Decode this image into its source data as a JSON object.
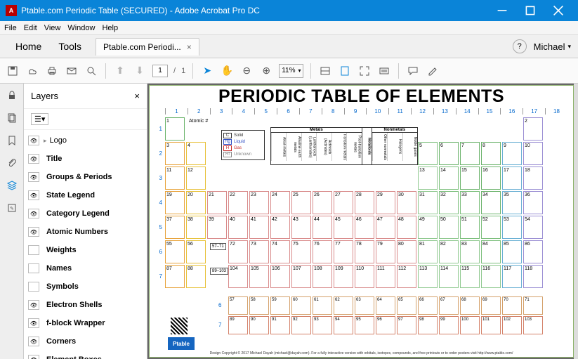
{
  "window": {
    "title": "Ptable.com Periodic Table (SECURED) - Adobe Acrobat Pro DC"
  },
  "menu": {
    "items": [
      "File",
      "Edit",
      "View",
      "Window",
      "Help"
    ]
  },
  "tabs": {
    "home": "Home",
    "tools": "Tools",
    "doc": "Ptable.com Periodi...",
    "user": "Michael"
  },
  "toolbar": {
    "page_cur": "1",
    "page_sep": "/",
    "page_tot": "1",
    "zoom": "11%"
  },
  "layers": {
    "title": "Layers",
    "items": [
      {
        "vis": true,
        "label": "Logo",
        "expand": "▸"
      },
      {
        "vis": true,
        "label": "Title"
      },
      {
        "vis": true,
        "label": "Groups & Periods"
      },
      {
        "vis": true,
        "label": "State Legend"
      },
      {
        "vis": true,
        "label": "Category Legend"
      },
      {
        "vis": true,
        "label": "Atomic Numbers"
      },
      {
        "vis": false,
        "label": "Weights"
      },
      {
        "vis": false,
        "label": "Names"
      },
      {
        "vis": false,
        "label": "Symbols"
      },
      {
        "vis": true,
        "label": "Electron Shells"
      },
      {
        "vis": true,
        "label": "f-block Wrapper"
      },
      {
        "vis": true,
        "label": "Corners"
      },
      {
        "vis": true,
        "label": "Element Boxes"
      }
    ]
  },
  "doc": {
    "title": "PERIODIC TABLE OF ELEMENTS",
    "cols": [
      "1",
      "2",
      "3",
      "4",
      "5",
      "6",
      "7",
      "8",
      "9",
      "10",
      "11",
      "12",
      "13",
      "14",
      "15",
      "16",
      "17",
      "18"
    ],
    "rows": [
      "1",
      "2",
      "3",
      "4",
      "5",
      "6",
      "7"
    ],
    "atomic_label": "Atomic #",
    "state_legend": [
      {
        "s": "C",
        "t": "Solid",
        "c": "#333"
      },
      {
        "s": "Hg",
        "t": "Liquid",
        "c": "#2b4bc4"
      },
      {
        "s": "H",
        "t": "Gas",
        "c": "#c62828"
      },
      {
        "s": "Rf",
        "t": "Unknown",
        "c": "#888"
      }
    ],
    "category_legend": {
      "metals": "Metals",
      "metalloids": "Metalloids",
      "nonmetals": "Nonmetals",
      "sub": [
        "Alkali metals",
        "Alkaline earth metals",
        "Lanthanoids (Lanthanides)",
        "Actinoids (Actinides)",
        "Transition metals",
        "Post-transition metals",
        "Other nonmetals",
        "Halogens",
        "Noble gases"
      ],
      "side": [
        "Pnictogens",
        "Chalcogens"
      ]
    },
    "colors": {
      "alkali": "#e8a33b",
      "alkaline": "#e8c23b",
      "transition": "#d98b8b",
      "post": "#8fc98f",
      "metalloid": "#7bbf7b",
      "nonmetal": "#6bb36b",
      "halogen": "#6ab0d4",
      "noble": "#9b8fd4",
      "lanth": "#d4a06a",
      "actin": "#d4826a"
    },
    "elements_main": [
      {
        "n": 1,
        "r": 0,
        "c": 0,
        "cat": "nonmetal"
      },
      {
        "n": 2,
        "r": 0,
        "c": 17,
        "cat": "noble"
      },
      {
        "n": 3,
        "r": 1,
        "c": 0,
        "cat": "alkali"
      },
      {
        "n": 4,
        "r": 1,
        "c": 1,
        "cat": "alkaline"
      },
      {
        "n": 5,
        "r": 1,
        "c": 12,
        "cat": "metalloid"
      },
      {
        "n": 6,
        "r": 1,
        "c": 13,
        "cat": "nonmetal"
      },
      {
        "n": 7,
        "r": 1,
        "c": 14,
        "cat": "nonmetal"
      },
      {
        "n": 8,
        "r": 1,
        "c": 15,
        "cat": "nonmetal"
      },
      {
        "n": 9,
        "r": 1,
        "c": 16,
        "cat": "halogen"
      },
      {
        "n": 10,
        "r": 1,
        "c": 17,
        "cat": "noble"
      },
      {
        "n": 11,
        "r": 2,
        "c": 0,
        "cat": "alkali"
      },
      {
        "n": 12,
        "r": 2,
        "c": 1,
        "cat": "alkaline"
      },
      {
        "n": 13,
        "r": 2,
        "c": 12,
        "cat": "post"
      },
      {
        "n": 14,
        "r": 2,
        "c": 13,
        "cat": "metalloid"
      },
      {
        "n": 15,
        "r": 2,
        "c": 14,
        "cat": "nonmetal"
      },
      {
        "n": 16,
        "r": 2,
        "c": 15,
        "cat": "nonmetal"
      },
      {
        "n": 17,
        "r": 2,
        "c": 16,
        "cat": "halogen"
      },
      {
        "n": 18,
        "r": 2,
        "c": 17,
        "cat": "noble"
      },
      {
        "n": 19,
        "r": 3,
        "c": 0,
        "cat": "alkali"
      },
      {
        "n": 20,
        "r": 3,
        "c": 1,
        "cat": "alkaline"
      },
      {
        "n": 21,
        "r": 3,
        "c": 2,
        "cat": "transition"
      },
      {
        "n": 22,
        "r": 3,
        "c": 3,
        "cat": "transition"
      },
      {
        "n": 23,
        "r": 3,
        "c": 4,
        "cat": "transition"
      },
      {
        "n": 24,
        "r": 3,
        "c": 5,
        "cat": "transition"
      },
      {
        "n": 25,
        "r": 3,
        "c": 6,
        "cat": "transition"
      },
      {
        "n": 26,
        "r": 3,
        "c": 7,
        "cat": "transition"
      },
      {
        "n": 27,
        "r": 3,
        "c": 8,
        "cat": "transition"
      },
      {
        "n": 28,
        "r": 3,
        "c": 9,
        "cat": "transition"
      },
      {
        "n": 29,
        "r": 3,
        "c": 10,
        "cat": "transition"
      },
      {
        "n": 30,
        "r": 3,
        "c": 11,
        "cat": "transition"
      },
      {
        "n": 31,
        "r": 3,
        "c": 12,
        "cat": "post"
      },
      {
        "n": 32,
        "r": 3,
        "c": 13,
        "cat": "metalloid"
      },
      {
        "n": 33,
        "r": 3,
        "c": 14,
        "cat": "metalloid"
      },
      {
        "n": 34,
        "r": 3,
        "c": 15,
        "cat": "nonmetal"
      },
      {
        "n": 35,
        "r": 3,
        "c": 16,
        "cat": "halogen"
      },
      {
        "n": 36,
        "r": 3,
        "c": 17,
        "cat": "noble"
      },
      {
        "n": 37,
        "r": 4,
        "c": 0,
        "cat": "alkali"
      },
      {
        "n": 38,
        "r": 4,
        "c": 1,
        "cat": "alkaline"
      },
      {
        "n": 39,
        "r": 4,
        "c": 2,
        "cat": "transition"
      },
      {
        "n": 40,
        "r": 4,
        "c": 3,
        "cat": "transition"
      },
      {
        "n": 41,
        "r": 4,
        "c": 4,
        "cat": "transition"
      },
      {
        "n": 42,
        "r": 4,
        "c": 5,
        "cat": "transition"
      },
      {
        "n": 43,
        "r": 4,
        "c": 6,
        "cat": "transition"
      },
      {
        "n": 44,
        "r": 4,
        "c": 7,
        "cat": "transition"
      },
      {
        "n": 45,
        "r": 4,
        "c": 8,
        "cat": "transition"
      },
      {
        "n": 46,
        "r": 4,
        "c": 9,
        "cat": "transition"
      },
      {
        "n": 47,
        "r": 4,
        "c": 10,
        "cat": "transition"
      },
      {
        "n": 48,
        "r": 4,
        "c": 11,
        "cat": "transition"
      },
      {
        "n": 49,
        "r": 4,
        "c": 12,
        "cat": "post"
      },
      {
        "n": 50,
        "r": 4,
        "c": 13,
        "cat": "post"
      },
      {
        "n": 51,
        "r": 4,
        "c": 14,
        "cat": "metalloid"
      },
      {
        "n": 52,
        "r": 4,
        "c": 15,
        "cat": "metalloid"
      },
      {
        "n": 53,
        "r": 4,
        "c": 16,
        "cat": "halogen"
      },
      {
        "n": 54,
        "r": 4,
        "c": 17,
        "cat": "noble"
      },
      {
        "n": 55,
        "r": 5,
        "c": 0,
        "cat": "alkali"
      },
      {
        "n": 56,
        "r": 5,
        "c": 1,
        "cat": "alkaline"
      },
      {
        "n": 72,
        "r": 5,
        "c": 3,
        "cat": "transition"
      },
      {
        "n": 73,
        "r": 5,
        "c": 4,
        "cat": "transition"
      },
      {
        "n": 74,
        "r": 5,
        "c": 5,
        "cat": "transition"
      },
      {
        "n": 75,
        "r": 5,
        "c": 6,
        "cat": "transition"
      },
      {
        "n": 76,
        "r": 5,
        "c": 7,
        "cat": "transition"
      },
      {
        "n": 77,
        "r": 5,
        "c": 8,
        "cat": "transition"
      },
      {
        "n": 78,
        "r": 5,
        "c": 9,
        "cat": "transition"
      },
      {
        "n": 79,
        "r": 5,
        "c": 10,
        "cat": "transition"
      },
      {
        "n": 80,
        "r": 5,
        "c": 11,
        "cat": "transition"
      },
      {
        "n": 81,
        "r": 5,
        "c": 12,
        "cat": "post"
      },
      {
        "n": 82,
        "r": 5,
        "c": 13,
        "cat": "post"
      },
      {
        "n": 83,
        "r": 5,
        "c": 14,
        "cat": "post"
      },
      {
        "n": 84,
        "r": 5,
        "c": 15,
        "cat": "metalloid"
      },
      {
        "n": 85,
        "r": 5,
        "c": 16,
        "cat": "halogen"
      },
      {
        "n": 86,
        "r": 5,
        "c": 17,
        "cat": "noble"
      },
      {
        "n": 87,
        "r": 6,
        "c": 0,
        "cat": "alkali"
      },
      {
        "n": 88,
        "r": 6,
        "c": 1,
        "cat": "alkaline"
      },
      {
        "n": 104,
        "r": 6,
        "c": 3,
        "cat": "transition"
      },
      {
        "n": 105,
        "r": 6,
        "c": 4,
        "cat": "transition"
      },
      {
        "n": 106,
        "r": 6,
        "c": 5,
        "cat": "transition"
      },
      {
        "n": 107,
        "r": 6,
        "c": 6,
        "cat": "transition"
      },
      {
        "n": 108,
        "r": 6,
        "c": 7,
        "cat": "transition"
      },
      {
        "n": 109,
        "r": 6,
        "c": 8,
        "cat": "transition"
      },
      {
        "n": 110,
        "r": 6,
        "c": 9,
        "cat": "transition"
      },
      {
        "n": 111,
        "r": 6,
        "c": 10,
        "cat": "transition"
      },
      {
        "n": 112,
        "r": 6,
        "c": 11,
        "cat": "transition"
      },
      {
        "n": 113,
        "r": 6,
        "c": 12,
        "cat": "post"
      },
      {
        "n": 114,
        "r": 6,
        "c": 13,
        "cat": "post"
      },
      {
        "n": 115,
        "r": 6,
        "c": 14,
        "cat": "post"
      },
      {
        "n": 116,
        "r": 6,
        "c": 15,
        "cat": "post"
      },
      {
        "n": 117,
        "r": 6,
        "c": 16,
        "cat": "halogen"
      },
      {
        "n": 118,
        "r": 6,
        "c": 17,
        "cat": "noble"
      }
    ],
    "fblock_labels": [
      "57–71",
      "89–103"
    ],
    "fblock": [
      [
        57,
        58,
        59,
        60,
        61,
        62,
        63,
        64,
        65,
        66,
        67,
        68,
        69,
        70,
        71
      ],
      [
        89,
        90,
        91,
        92,
        93,
        94,
        95,
        96,
        97,
        98,
        99,
        100,
        101,
        102,
        103
      ]
    ],
    "logo": "Ptable",
    "footer": "Design Copyright © 2017 Michael Dayah (michael@dayah.com). For a fully interactive version with orbitals, isotopes, compounds, and free printouts or to order posters visit http://www.ptable.com/"
  }
}
